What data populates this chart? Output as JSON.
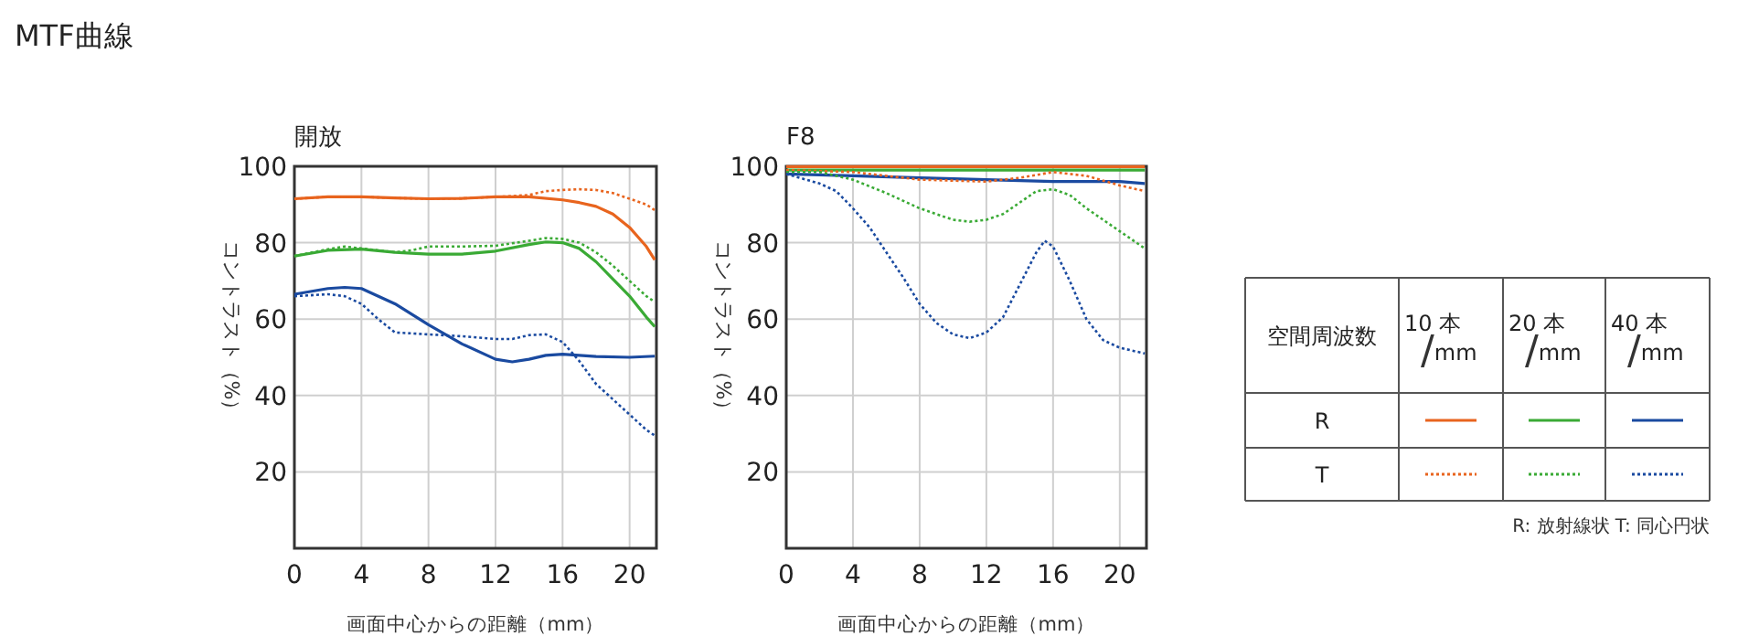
{
  "chart_data": [
    {
      "type": "line",
      "title": "MTF曲線",
      "subtitle": "開放",
      "xlabel": "画面中心からの距離（mm）",
      "ylabel": "コントラスト（%）",
      "xlim": [
        0,
        21.6
      ],
      "ylim": [
        0,
        100
      ],
      "xticks": [
        0,
        4,
        8,
        12,
        16,
        20
      ],
      "yticks": [
        20,
        40,
        60,
        80,
        100
      ],
      "grid": true,
      "series": [
        {
          "color": "#e8641e",
          "line_style": "solid",
          "x": [
            0,
            2,
            4,
            6,
            8,
            10,
            12,
            14,
            16,
            17,
            18,
            19,
            20,
            21,
            21.5
          ],
          "values": [
            91.5,
            92,
            92,
            91.7,
            91.5,
            91.6,
            92,
            92,
            91.2,
            90.5,
            89.5,
            87.5,
            84,
            79,
            75.5
          ]
        },
        {
          "color": "#3aaa35",
          "line_style": "solid",
          "x": [
            0,
            2,
            4,
            6,
            8,
            10,
            12,
            14,
            15,
            16,
            17,
            18,
            19,
            20,
            21,
            21.5
          ],
          "values": [
            76.5,
            78,
            78.3,
            77.5,
            77,
            77,
            77.8,
            79.5,
            80.2,
            80,
            78.5,
            75,
            70.5,
            66,
            60.5,
            58
          ]
        },
        {
          "color": "#1a4aa0",
          "line_style": "solid",
          "x": [
            0,
            2,
            3,
            4,
            6,
            8,
            10,
            12,
            13,
            14,
            15,
            16,
            18,
            20,
            21.5
          ],
          "values": [
            66.5,
            68,
            68.3,
            68,
            64,
            58.5,
            53.5,
            49.5,
            48.8,
            49.5,
            50.5,
            50.8,
            50.2,
            50,
            50.3
          ]
        },
        {
          "color": "#e8641e",
          "line_style": "dotted",
          "x": [
            0,
            2,
            4,
            6,
            8,
            10,
            12,
            13,
            14,
            15,
            16,
            17,
            18,
            19,
            20,
            21,
            21.5
          ],
          "values": [
            91.5,
            92,
            92,
            91.7,
            91.5,
            91.6,
            92,
            92.2,
            92.5,
            93.5,
            93.8,
            94,
            93.8,
            93,
            91.5,
            90,
            88.5
          ]
        },
        {
          "color": "#3aaa35",
          "line_style": "dotted",
          "x": [
            0,
            2,
            3,
            4,
            6,
            7,
            8,
            10,
            12,
            14,
            15,
            16,
            17,
            18,
            19,
            20,
            21,
            21.5
          ],
          "values": [
            76.5,
            78.3,
            79,
            78.5,
            77.5,
            78,
            79,
            79,
            79.2,
            80.5,
            81.2,
            81,
            80,
            77.5,
            74,
            70,
            66,
            64.5
          ]
        },
        {
          "color": "#1a4aa0",
          "line_style": "dotted",
          "x": [
            0,
            2,
            3,
            4,
            5,
            6,
            8,
            10,
            12,
            13,
            14,
            15,
            16,
            17,
            18,
            19,
            20,
            21,
            21.5
          ],
          "values": [
            66,
            66.5,
            66,
            64,
            60,
            56.5,
            56,
            55.5,
            54.8,
            54.8,
            55.8,
            56,
            54,
            49,
            43,
            39,
            35,
            31,
            29.5
          ]
        }
      ]
    },
    {
      "type": "line",
      "title": "F8",
      "xlabel": "画面中心からの距離（mm）",
      "ylabel": "コントラスト（%）",
      "xlim": [
        0,
        21.6
      ],
      "ylim": [
        0,
        100
      ],
      "xticks": [
        0,
        4,
        8,
        12,
        16,
        20
      ],
      "yticks": [
        20,
        40,
        60,
        80,
        100
      ],
      "grid": true,
      "series": [
        {
          "color": "#e8641e",
          "line_style": "solid",
          "x": [
            0,
            8,
            16,
            21.5
          ],
          "values": [
            99.9,
            99.9,
            99.9,
            99.9
          ]
        },
        {
          "color": "#3aaa35",
          "line_style": "solid",
          "x": [
            0,
            8,
            16,
            21.5
          ],
          "values": [
            99,
            99,
            99,
            99
          ]
        },
        {
          "color": "#1a4aa0",
          "line_style": "solid",
          "x": [
            0,
            4,
            8,
            12,
            16,
            20,
            21.5
          ],
          "values": [
            98,
            97.5,
            97,
            96.5,
            96,
            96,
            95.5
          ]
        },
        {
          "color": "#e8641e",
          "line_style": "dotted",
          "x": [
            0,
            4,
            8,
            12,
            14,
            16,
            18,
            20,
            21.5
          ],
          "values": [
            99,
            98.5,
            96.5,
            96,
            97,
            98.5,
            97.5,
            95,
            93.5
          ]
        },
        {
          "color": "#3aaa35",
          "line_style": "dotted",
          "x": [
            0,
            2,
            4,
            6,
            8,
            10,
            11,
            12,
            13,
            14,
            15,
            16,
            17,
            18,
            19,
            20,
            21,
            21.5
          ],
          "values": [
            98.5,
            98.5,
            96.5,
            93,
            89,
            86,
            85.5,
            86,
            87.5,
            90.5,
            93.5,
            94,
            92.5,
            89,
            86,
            83,
            80,
            78.5
          ]
        },
        {
          "color": "#1a4aa0",
          "line_style": "dotted",
          "x": [
            0,
            2,
            3,
            4,
            5,
            6,
            7,
            8,
            9,
            10,
            11,
            12,
            13,
            14,
            15,
            15.5,
            16,
            17,
            18,
            19,
            20,
            21,
            21.5
          ],
          "values": [
            98,
            95.5,
            93.5,
            89,
            84,
            77.5,
            71,
            64,
            59,
            56,
            55,
            56.5,
            60.5,
            69,
            77.5,
            80.5,
            79,
            70,
            60,
            54.5,
            52.5,
            51.5,
            51
          ]
        }
      ]
    },
    {
      "type": "other",
      "title": "空間周波数",
      "categories": [
        "10 本/mm",
        "20 本/mm",
        "40 本/mm"
      ],
      "y_categories": [
        "R",
        "T"
      ],
      "annotations": [
        "R: 放射線状  T: 同心円状"
      ]
    }
  ]
}
